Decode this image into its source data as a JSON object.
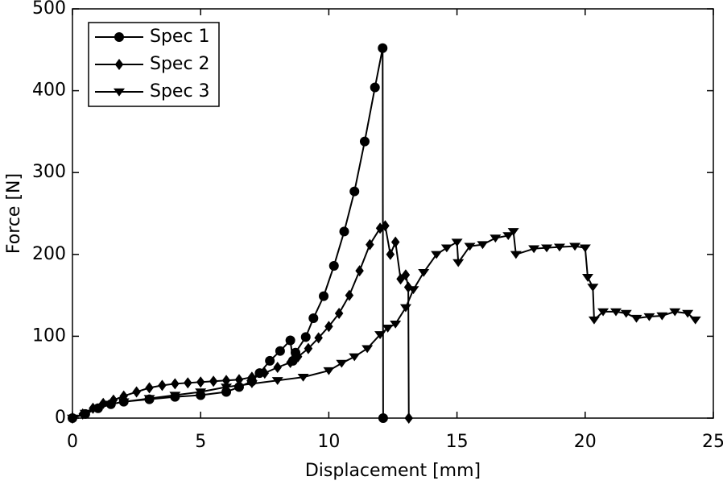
{
  "chart_data": {
    "type": "line",
    "xlabel": "Displacement [mm]",
    "ylabel": "Force [N]",
    "xlim": [
      0,
      25
    ],
    "xticks": [
      0,
      5,
      10,
      15,
      20,
      25
    ],
    "ylim": [
      0,
      500
    ],
    "yticks": [
      0,
      100,
      200,
      300,
      400,
      500
    ],
    "legend": "upper left",
    "series": [
      {
        "name": "Spec 1",
        "color": "#000000",
        "marker": "circle",
        "x": [
          0,
          0.5,
          1,
          1.5,
          2,
          3,
          4,
          5,
          6,
          6.5,
          7,
          7.3,
          7.7,
          8.1,
          8.5,
          8.6,
          8.7,
          9.1,
          9.4,
          9.8,
          10.2,
          10.6,
          11,
          11.4,
          11.8,
          12.1,
          12.12
        ],
        "values": [
          0,
          5,
          12,
          17,
          20,
          23,
          26,
          28,
          32,
          38,
          45,
          55,
          70,
          82,
          95,
          70,
          80,
          99,
          122,
          149,
          186,
          228,
          277,
          338,
          404,
          452,
          0
        ]
      },
      {
        "name": "Spec 2",
        "color": "#000000",
        "marker": "diamond",
        "x": [
          0,
          0.4,
          0.8,
          1.2,
          1.6,
          2,
          2.5,
          3,
          3.5,
          4,
          4.5,
          5,
          5.5,
          6,
          6.5,
          7,
          7.5,
          8,
          8.5,
          8.8,
          9.2,
          9.6,
          10,
          10.4,
          10.8,
          11.2,
          11.6,
          12,
          12.2,
          12.4,
          12.6,
          12.8,
          13,
          13.1,
          13.12
        ],
        "values": [
          0,
          5,
          12,
          18,
          22,
          27,
          32,
          37,
          40,
          42,
          43,
          44,
          45,
          46,
          47,
          50,
          55,
          62,
          68,
          75,
          85,
          98,
          112,
          128,
          150,
          180,
          212,
          232,
          235,
          200,
          215,
          170,
          175,
          160,
          0
        ]
      },
      {
        "name": "Spec 3",
        "color": "#000000",
        "marker": "triangle-down",
        "x": [
          0,
          0.5,
          1,
          1.5,
          2,
          3,
          4,
          5,
          6,
          7,
          8,
          9,
          10,
          10.5,
          11,
          11.5,
          12,
          12.3,
          12.6,
          13,
          13.3,
          13.7,
          14.2,
          14.6,
          15,
          15.05,
          15.5,
          16,
          16.5,
          17,
          17.2,
          17.3,
          18,
          18.5,
          19,
          19.6,
          20,
          20.1,
          20.3,
          20.35,
          20.7,
          21.2,
          21.6,
          22,
          22.5,
          23,
          23.5,
          24,
          24.3
        ],
        "values": [
          0,
          6,
          12,
          17,
          20,
          24,
          28,
          32,
          38,
          42,
          46,
          50,
          58,
          67,
          75,
          85,
          102,
          110,
          115,
          135,
          157,
          178,
          200,
          208,
          215,
          190,
          210,
          212,
          220,
          223,
          228,
          200,
          207,
          208,
          209,
          210,
          208,
          172,
          160,
          120,
          130,
          130,
          128,
          122,
          124,
          125,
          130,
          128,
          120
        ]
      }
    ]
  }
}
